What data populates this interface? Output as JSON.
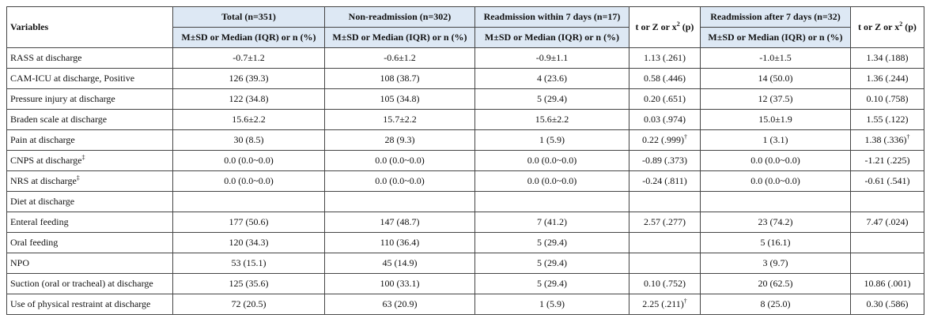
{
  "table": {
    "header": {
      "variables": "Variables",
      "groups": [
        "Total (n=351)",
        "Non-readmission (n=302)",
        "Readmission within 7 days (n=17)",
        "Readmission after 7 days (n=32)"
      ],
      "subheaders": [
        "M±SD or Median (IQR) or n (%)",
        "M±SD or Median (IQR) or n (%)",
        "M±SD or Median (IQR) or n (%)",
        "M±SD or Median (IQR) or n (%)"
      ],
      "stats": [
        {
          "text": "t or Z or x",
          "sup": "2",
          "tail": "(p)"
        },
        {
          "text": "t or Z or x",
          "sup": "2",
          "tail": "(p)"
        }
      ]
    },
    "rows": [
      {
        "label": "RASS at discharge",
        "cells": [
          "-0.7±1.2",
          "-0.6±1.2",
          "-0.9±1.1",
          "1.13 (.261)",
          "-1.0±1.5",
          "1.34 (.188)"
        ]
      },
      {
        "label": "CAM-ICU at discharge, Positive",
        "cells": [
          "126 (39.3)",
          "108 (38.7)",
          "4 (23.6)",
          "0.58 (.446)",
          "14 (50.0)",
          "1.36 (.244)"
        ]
      },
      {
        "label": "Pressure injury at discharge",
        "cells": [
          "122 (34.8)",
          "105 (34.8)",
          "5 (29.4)",
          "0.20 (.651)",
          "12 (37.5)",
          "0.10 (.758)"
        ]
      },
      {
        "label": "Braden scale at discharge",
        "cells": [
          "15.6±2.2",
          "15.7±2.2",
          "15.6±2.2",
          "0.03 (.974)",
          "15.0±1.9",
          "1.55 (.122)"
        ]
      },
      {
        "label": "Pain at discharge",
        "cells": [
          "30 (8.5)",
          "28 (9.3)",
          "1 (5.9)",
          {
            "text": "0.22 (.999)",
            "sup": "†"
          },
          "1 (3.1)",
          {
            "text": "1.38 (.336)",
            "sup": "†"
          }
        ]
      },
      {
        "label": {
          "text": "CNPS at discharge",
          "sup": "‡"
        },
        "cells": [
          "0.0 (0.0~0.0)",
          "0.0 (0.0~0.0)",
          "0.0 (0.0~0.0)",
          "-0.89 (.373)",
          "0.0 (0.0~0.0)",
          "-1.21 (.225)"
        ]
      },
      {
        "label": {
          "text": "NRS at discharge",
          "sup": "‡"
        },
        "cells": [
          "0.0 (0.0~0.0)",
          "0.0 (0.0~0.0)",
          "0.0 (0.0~0.0)",
          "-0.24 (.811)",
          "0.0 (0.0~0.0)",
          "-0.61 (.541)"
        ]
      },
      {
        "label": "Diet at discharge",
        "cells": [
          null,
          null,
          null,
          null,
          null,
          null
        ]
      },
      {
        "label": "Enteral feeding",
        "cells": [
          "177 (50.6)",
          "147 (48.7)",
          "7 (41.2)",
          "2.57 (.277)",
          "23 (74.2)",
          "7.47 (.024)"
        ]
      },
      {
        "label": "Oral feeding",
        "cells": [
          "120 (34.3)",
          "110 (36.4)",
          "5 (29.4)",
          null,
          "5 (16.1)",
          null
        ]
      },
      {
        "label": "NPO",
        "cells": [
          "53 (15.1)",
          "45 (14.9)",
          "5 (29.4)",
          null,
          "3 (9.7)",
          null
        ]
      },
      {
        "label": "Suction (oral or tracheal) at discharge",
        "cells": [
          "125 (35.6)",
          "100 (33.1)",
          "5 (29.4)",
          "0.10 (.752)",
          "20 (62.5)",
          "10.86 (.001)"
        ]
      },
      {
        "label": "Use of physical restraint at discharge",
        "cells": [
          "72 (20.5)",
          "63 (20.9)",
          "1 (5.9)",
          {
            "text": "2.25 (.211)",
            "sup": "†"
          },
          "8 (25.0)",
          "0.30 (.586)"
        ]
      }
    ]
  }
}
